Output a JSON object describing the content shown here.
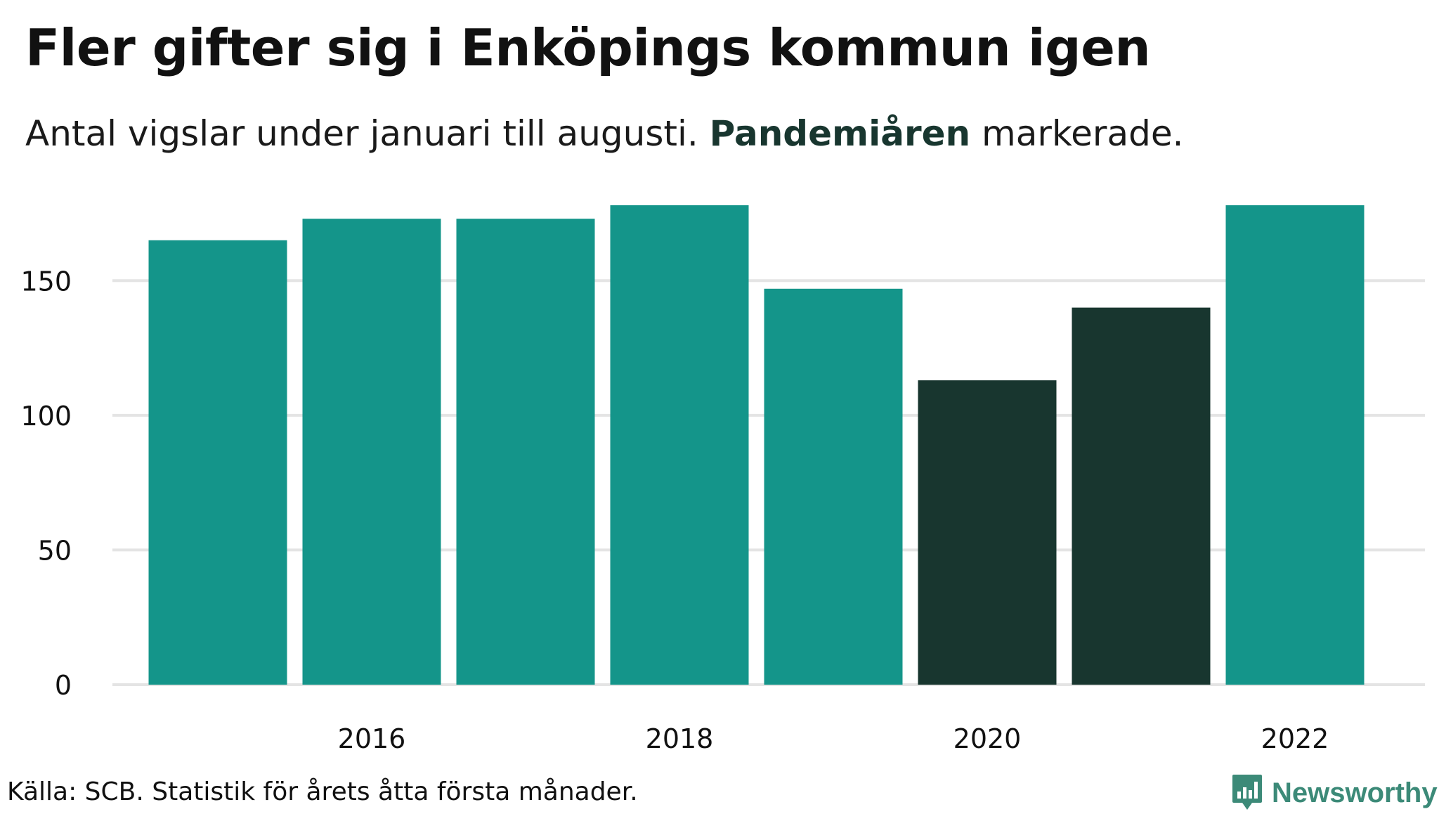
{
  "title": "Fler gifter sig i Enköpings kommun igen",
  "subtitle": {
    "before": "Antal vigslar under januari till augusti. ",
    "highlight": "Pandemiåren",
    "after": " markerade."
  },
  "source": "Källa: SCB. Statistik för årets åtta första månader.",
  "brand": {
    "name": "Newsworthy",
    "icon": "newsworthy-logo-icon"
  },
  "colors": {
    "normal": "#14958a",
    "pandemic": "#18362f",
    "grid": "#e4e4e4",
    "brand": "#3c8a78"
  },
  "chart_data": {
    "type": "bar",
    "categories": [
      "2015",
      "2016",
      "2017",
      "2018",
      "2019",
      "2020",
      "2021",
      "2022"
    ],
    "values": [
      165,
      173,
      173,
      178,
      147,
      113,
      140,
      178
    ],
    "highlighted": [
      "2020",
      "2021"
    ],
    "x_tick_labels": [
      "2016",
      "2018",
      "2020",
      "2022"
    ],
    "y_ticks": [
      0,
      50,
      100,
      150
    ],
    "ylim": [
      0,
      178
    ],
    "title": "Fler gifter sig i Enköpings kommun igen",
    "xlabel": "",
    "ylabel": "",
    "grid": true,
    "legend": "none"
  }
}
